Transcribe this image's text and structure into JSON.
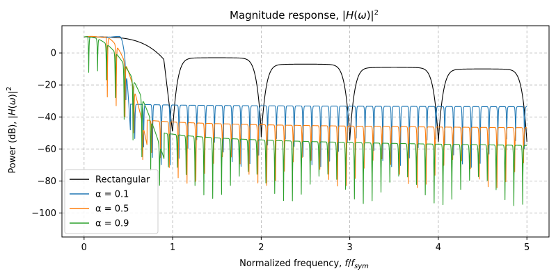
{
  "chart_data": {
    "type": "line",
    "title": "Magnitude response, |H(ω)|²",
    "xlabel": "Normalized frequency, f/f_sym",
    "ylabel": "Power (dB), |H(ω)|²",
    "xlim": [
      -0.25,
      5.25
    ],
    "ylim": [
      -115,
      17
    ],
    "xticks": [
      0,
      1,
      2,
      3,
      4,
      5
    ],
    "yticks": [
      0,
      -20,
      -40,
      -60,
      -80,
      -100
    ],
    "xtick_labels": [
      "0",
      "1",
      "2",
      "3",
      "4",
      "5"
    ],
    "ytick_labels": [
      "0",
      "−20",
      "−40",
      "−60",
      "−80",
      "−100"
    ],
    "grid": true,
    "legend_position": "lower-left",
    "series": [
      {
        "name": "Rectangular",
        "color": "#000000",
        "kind": "rect"
      },
      {
        "name": "α = 0.1",
        "color": "#1f77b4",
        "alpha": 0.1,
        "floor": -40,
        "decay": 0.2
      },
      {
        "name": "α = 0.5",
        "color": "#ff7f0e",
        "alpha": 0.5,
        "floor": -50,
        "decay": 0.6
      },
      {
        "name": "α = 0.9",
        "color": "#2ca02c",
        "alpha": 0.9,
        "floor": -58,
        "decay": 1.0
      }
    ],
    "sidelobe_spacing": 0.1,
    "peak_db": 10,
    "rect_lobe_peaks": [
      -3,
      -7,
      -9,
      -10
    ],
    "samples": 2000
  }
}
